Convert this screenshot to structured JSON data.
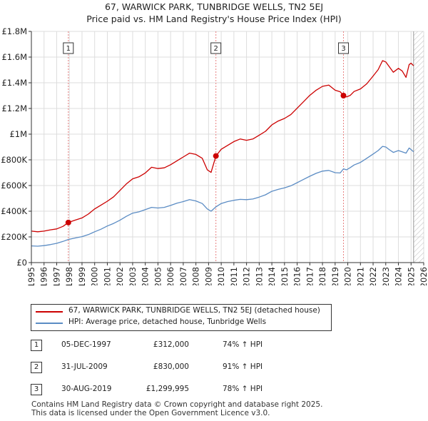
{
  "header": {
    "title_line1": "67, WARWICK PARK, TUNBRIDGE WELLS, TN2 5EJ",
    "title_line2": "Price paid vs. HM Land Registry's House Price Index (HPI)"
  },
  "colors": {
    "property": "#cc0000",
    "hpi": "#5b8cc4",
    "grid": "#dddddd",
    "hatch": "#bbbbbb"
  },
  "chart_data": {
    "type": "line",
    "ylim": [
      0,
      1800000
    ],
    "xlim": [
      1995,
      2026
    ],
    "yticks": [
      0,
      200000,
      400000,
      600000,
      800000,
      1000000,
      1200000,
      1400000,
      1600000,
      1800000
    ],
    "ytick_labels": [
      "£0",
      "£200K",
      "£400K",
      "£600K",
      "£800K",
      "£1M",
      "£1.2M",
      "£1.4M",
      "£1.6M",
      "£1.8M"
    ],
    "xticks": [
      1995,
      1996,
      1997,
      1998,
      1999,
      2000,
      2001,
      2002,
      2003,
      2004,
      2005,
      2006,
      2007,
      2008,
      2009,
      2010,
      2011,
      2012,
      2013,
      2014,
      2015,
      2016,
      2017,
      2018,
      2019,
      2020,
      2021,
      2022,
      2023,
      2024,
      2025,
      2026
    ],
    "grid": true,
    "future_hatch_from": 2025.2,
    "series": [
      {
        "name": "67, WARWICK PARK, TUNBRIDGE WELLS, TN2 5EJ (detached house)",
        "color": "#cc0000",
        "x": [
          1995.0,
          1995.5,
          1996.0,
          1996.5,
          1997.0,
          1997.5,
          1997.92,
          1998.5,
          1999.0,
          1999.5,
          2000.0,
          2000.5,
          2001.0,
          2001.5,
          2002.0,
          2002.5,
          2003.0,
          2003.5,
          2004.0,
          2004.5,
          2005.0,
          2005.5,
          2006.0,
          2006.5,
          2007.0,
          2007.5,
          2008.0,
          2008.5,
          2008.9,
          2009.2,
          2009.58,
          2010.0,
          2010.5,
          2011.0,
          2011.5,
          2012.0,
          2012.5,
          2013.0,
          2013.5,
          2014.0,
          2014.5,
          2015.0,
          2015.5,
          2016.0,
          2016.5,
          2017.0,
          2017.5,
          2018.0,
          2018.5,
          2019.0,
          2019.4,
          2019.66,
          2019.9,
          2020.2,
          2020.5,
          2021.0,
          2021.5,
          2022.0,
          2022.4,
          2022.75,
          2023.0,
          2023.3,
          2023.6,
          2024.0,
          2024.3,
          2024.6,
          2024.85,
          2025.0,
          2025.2
        ],
        "y": [
          245000,
          240000,
          245000,
          255000,
          262000,
          282000,
          312000,
          332000,
          348000,
          378000,
          418000,
          448000,
          478000,
          512000,
          562000,
          612000,
          652000,
          668000,
          698000,
          742000,
          732000,
          738000,
          762000,
          792000,
          822000,
          852000,
          842000,
          812000,
          722000,
          702000,
          830000,
          882000,
          912000,
          942000,
          962000,
          952000,
          962000,
          992000,
          1022000,
          1072000,
          1102000,
          1122000,
          1152000,
          1202000,
          1252000,
          1302000,
          1342000,
          1372000,
          1382000,
          1342000,
          1330000,
          1299995,
          1290000,
          1302000,
          1332000,
          1352000,
          1392000,
          1452000,
          1502000,
          1572000,
          1562000,
          1522000,
          1482000,
          1512000,
          1492000,
          1442000,
          1542000,
          1552000,
          1532000
        ]
      },
      {
        "name": "HPI: Average price, detached house, Tunbridge Wells",
        "color": "#5b8cc4",
        "x": [
          1995.0,
          1995.5,
          1996.0,
          1996.5,
          1997.0,
          1997.5,
          1997.92,
          1998.5,
          1999.0,
          1999.5,
          2000.0,
          2000.5,
          2001.0,
          2001.5,
          2002.0,
          2002.5,
          2003.0,
          2003.5,
          2004.0,
          2004.5,
          2005.0,
          2005.5,
          2006.0,
          2006.5,
          2007.0,
          2007.5,
          2008.0,
          2008.5,
          2008.9,
          2009.2,
          2009.58,
          2010.0,
          2010.5,
          2011.0,
          2011.5,
          2012.0,
          2012.5,
          2013.0,
          2013.5,
          2014.0,
          2014.5,
          2015.0,
          2015.5,
          2016.0,
          2016.5,
          2017.0,
          2017.5,
          2018.0,
          2018.5,
          2019.0,
          2019.4,
          2019.66,
          2019.9,
          2020.2,
          2020.5,
          2021.0,
          2021.5,
          2022.0,
          2022.4,
          2022.75,
          2023.0,
          2023.3,
          2023.6,
          2024.0,
          2024.3,
          2024.6,
          2024.85,
          2025.0,
          2025.2
        ],
        "y": [
          130000,
          128000,
          132000,
          140000,
          150000,
          165000,
          180000,
          192000,
          202000,
          218000,
          240000,
          260000,
          285000,
          305000,
          330000,
          360000,
          385000,
          395000,
          412000,
          430000,
          425000,
          430000,
          445000,
          462000,
          475000,
          490000,
          480000,
          460000,
          418000,
          400000,
          434000,
          460000,
          475000,
          485000,
          492000,
          490000,
          495000,
          510000,
          528000,
          555000,
          570000,
          582000,
          598000,
          622000,
          648000,
          672000,
          695000,
          712000,
          718000,
          700000,
          698000,
          730000,
          722000,
          740000,
          760000,
          780000,
          812000,
          845000,
          872000,
          905000,
          900000,
          878000,
          858000,
          872000,
          862000,
          852000,
          892000,
          880000,
          862000
        ]
      }
    ],
    "transactions": [
      {
        "num": "1",
        "date": "05-DEC-1997",
        "x": 1997.92,
        "value": 312000,
        "price": "£312,000",
        "hpi": "74% ↑ HPI"
      },
      {
        "num": "2",
        "date": "31-JUL-2009",
        "x": 2009.58,
        "value": 830000,
        "price": "£830,000",
        "hpi": "91% ↑ HPI"
      },
      {
        "num": "3",
        "date": "30-AUG-2019",
        "x": 2019.66,
        "value": 1299995,
        "price": "£1,299,995",
        "hpi": "78% ↑ HPI"
      }
    ]
  },
  "legend": {
    "property_label": "67, WARWICK PARK, TUNBRIDGE WELLS, TN2 5EJ (detached house)",
    "hpi_label": "HPI: Average price, detached house, Tunbridge Wells"
  },
  "footer": {
    "line1": "Contains HM Land Registry data © Crown copyright and database right 2025.",
    "line2": "This data is licensed under the Open Government Licence v3.0."
  }
}
